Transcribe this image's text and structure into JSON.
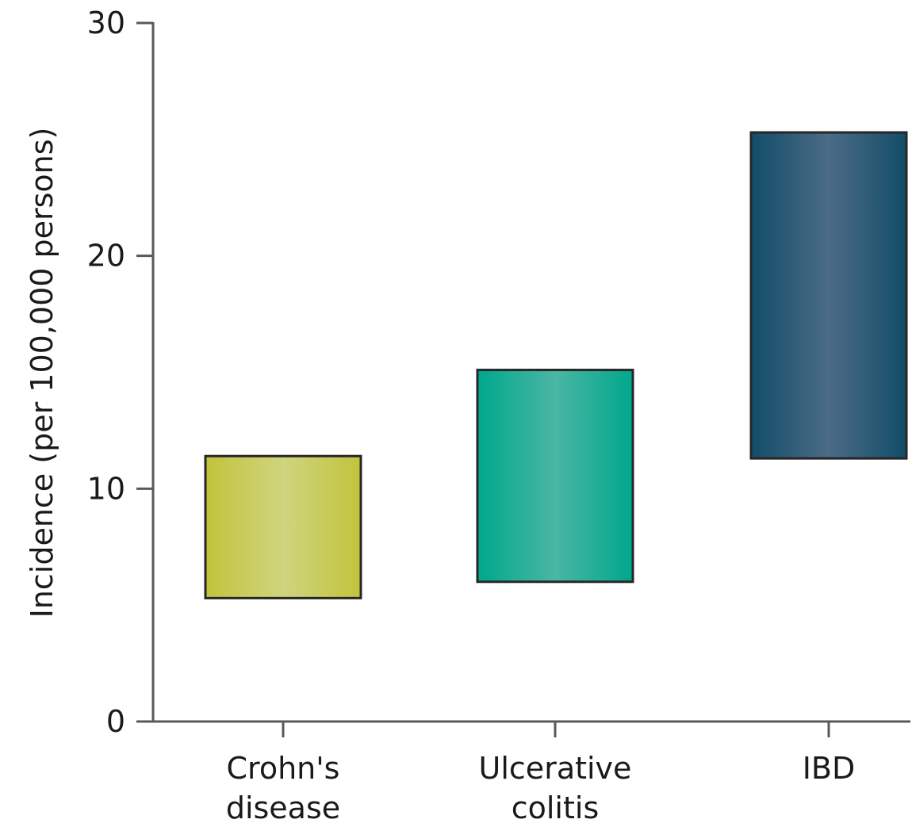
{
  "chart_data": {
    "type": "bar",
    "subtype": "floating-range",
    "categories": [
      [
        "Crohn's",
        "disease"
      ],
      [
        "Ulcerative",
        "colitis"
      ],
      [
        "IBD"
      ]
    ],
    "ranges": [
      {
        "low": 5.3,
        "high": 11.4
      },
      {
        "low": 6.0,
        "high": 15.1
      },
      {
        "low": 11.3,
        "high": 25.3
      }
    ],
    "ylabel": "Incidence (per 100,000 persons)",
    "ylim": [
      0,
      30
    ],
    "yticks": [
      0,
      10,
      20,
      30
    ],
    "grid": false,
    "colors": [
      {
        "edge": "#c2c33c",
        "center": "#cfd47e"
      },
      {
        "edge": "#00a78c",
        "center": "#4ab6a4"
      },
      {
        "edge": "#124d68",
        "center": "#4b6b86"
      }
    ]
  }
}
